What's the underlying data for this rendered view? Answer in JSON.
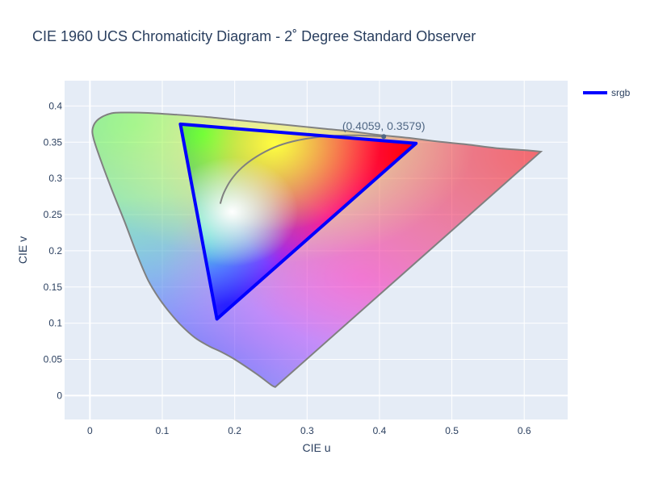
{
  "chart_data": {
    "type": "line",
    "title": "CIE 1960 UCS Chromaticity Diagram - 2˚ Degree Standard Observer",
    "xlabel": "CIE u",
    "ylabel": "CIE v",
    "xlim": [
      -0.035,
      0.66
    ],
    "ylim": [
      -0.033,
      0.435
    ],
    "x_ticks": [
      0,
      0.1,
      0.2,
      0.3,
      0.4,
      0.5,
      0.6
    ],
    "x_tick_labels": [
      "0",
      "0.1",
      "0.2",
      "0.3",
      "0.4",
      "0.5",
      "0.6"
    ],
    "y_ticks": [
      0,
      0.05,
      0.1,
      0.15,
      0.2,
      0.25,
      0.3,
      0.35,
      0.4
    ],
    "y_tick_labels": [
      "0",
      "0.05",
      "0.1",
      "0.15",
      "0.2",
      "0.25",
      "0.3",
      "0.35",
      "0.4"
    ],
    "grid": true,
    "legend": {
      "placement": "top-right",
      "entries": [
        {
          "name": "srgb",
          "color": "#0000ff"
        }
      ]
    },
    "spectral_locus": {
      "color": "#808080",
      "points": [
        [
          0.256,
          0.0118
        ],
        [
          0.25,
          0.015
        ],
        [
          0.23,
          0.03
        ],
        [
          0.2,
          0.05
        ],
        [
          0.18,
          0.061
        ],
        [
          0.165,
          0.068
        ],
        [
          0.145,
          0.08
        ],
        [
          0.125,
          0.098
        ],
        [
          0.11,
          0.115
        ],
        [
          0.095,
          0.135
        ],
        [
          0.08,
          0.16
        ],
        [
          0.065,
          0.195
        ],
        [
          0.048,
          0.24
        ],
        [
          0.03,
          0.285
        ],
        [
          0.015,
          0.325
        ],
        [
          0.005,
          0.355
        ],
        [
          0.004,
          0.37
        ],
        [
          0.012,
          0.382
        ],
        [
          0.03,
          0.39
        ],
        [
          0.05,
          0.391
        ],
        [
          0.08,
          0.3905
        ],
        [
          0.12,
          0.388
        ],
        [
          0.16,
          0.385
        ],
        [
          0.2,
          0.381
        ],
        [
          0.24,
          0.377
        ],
        [
          0.28,
          0.373
        ],
        [
          0.32,
          0.369
        ],
        [
          0.36,
          0.365
        ],
        [
          0.4,
          0.36
        ],
        [
          0.44,
          0.356
        ],
        [
          0.48,
          0.351
        ],
        [
          0.52,
          0.347
        ],
        [
          0.56,
          0.342
        ],
        [
          0.6,
          0.339
        ],
        [
          0.623,
          0.337
        ]
      ]
    },
    "planckian_locus": {
      "color": "#808080",
      "points": [
        [
          0.18,
          0.265
        ],
        [
          0.185,
          0.28
        ],
        [
          0.195,
          0.298
        ],
        [
          0.21,
          0.315
        ],
        [
          0.23,
          0.33
        ],
        [
          0.255,
          0.343
        ],
        [
          0.28,
          0.351
        ],
        [
          0.31,
          0.3565
        ],
        [
          0.34,
          0.359
        ],
        [
          0.37,
          0.3595
        ],
        [
          0.4059,
          0.3579
        ]
      ]
    },
    "series": [
      {
        "name": "srgb",
        "color": "#0000ff",
        "points": [
          [
            0.125,
            0.375
          ],
          [
            0.4505,
            0.3484
          ],
          [
            0.1754,
            0.1058
          ],
          [
            0.125,
            0.375
          ]
        ]
      }
    ],
    "annotation": {
      "text": "(0.4059, 0.3579)",
      "u": 0.4059,
      "v": 0.3579
    }
  }
}
